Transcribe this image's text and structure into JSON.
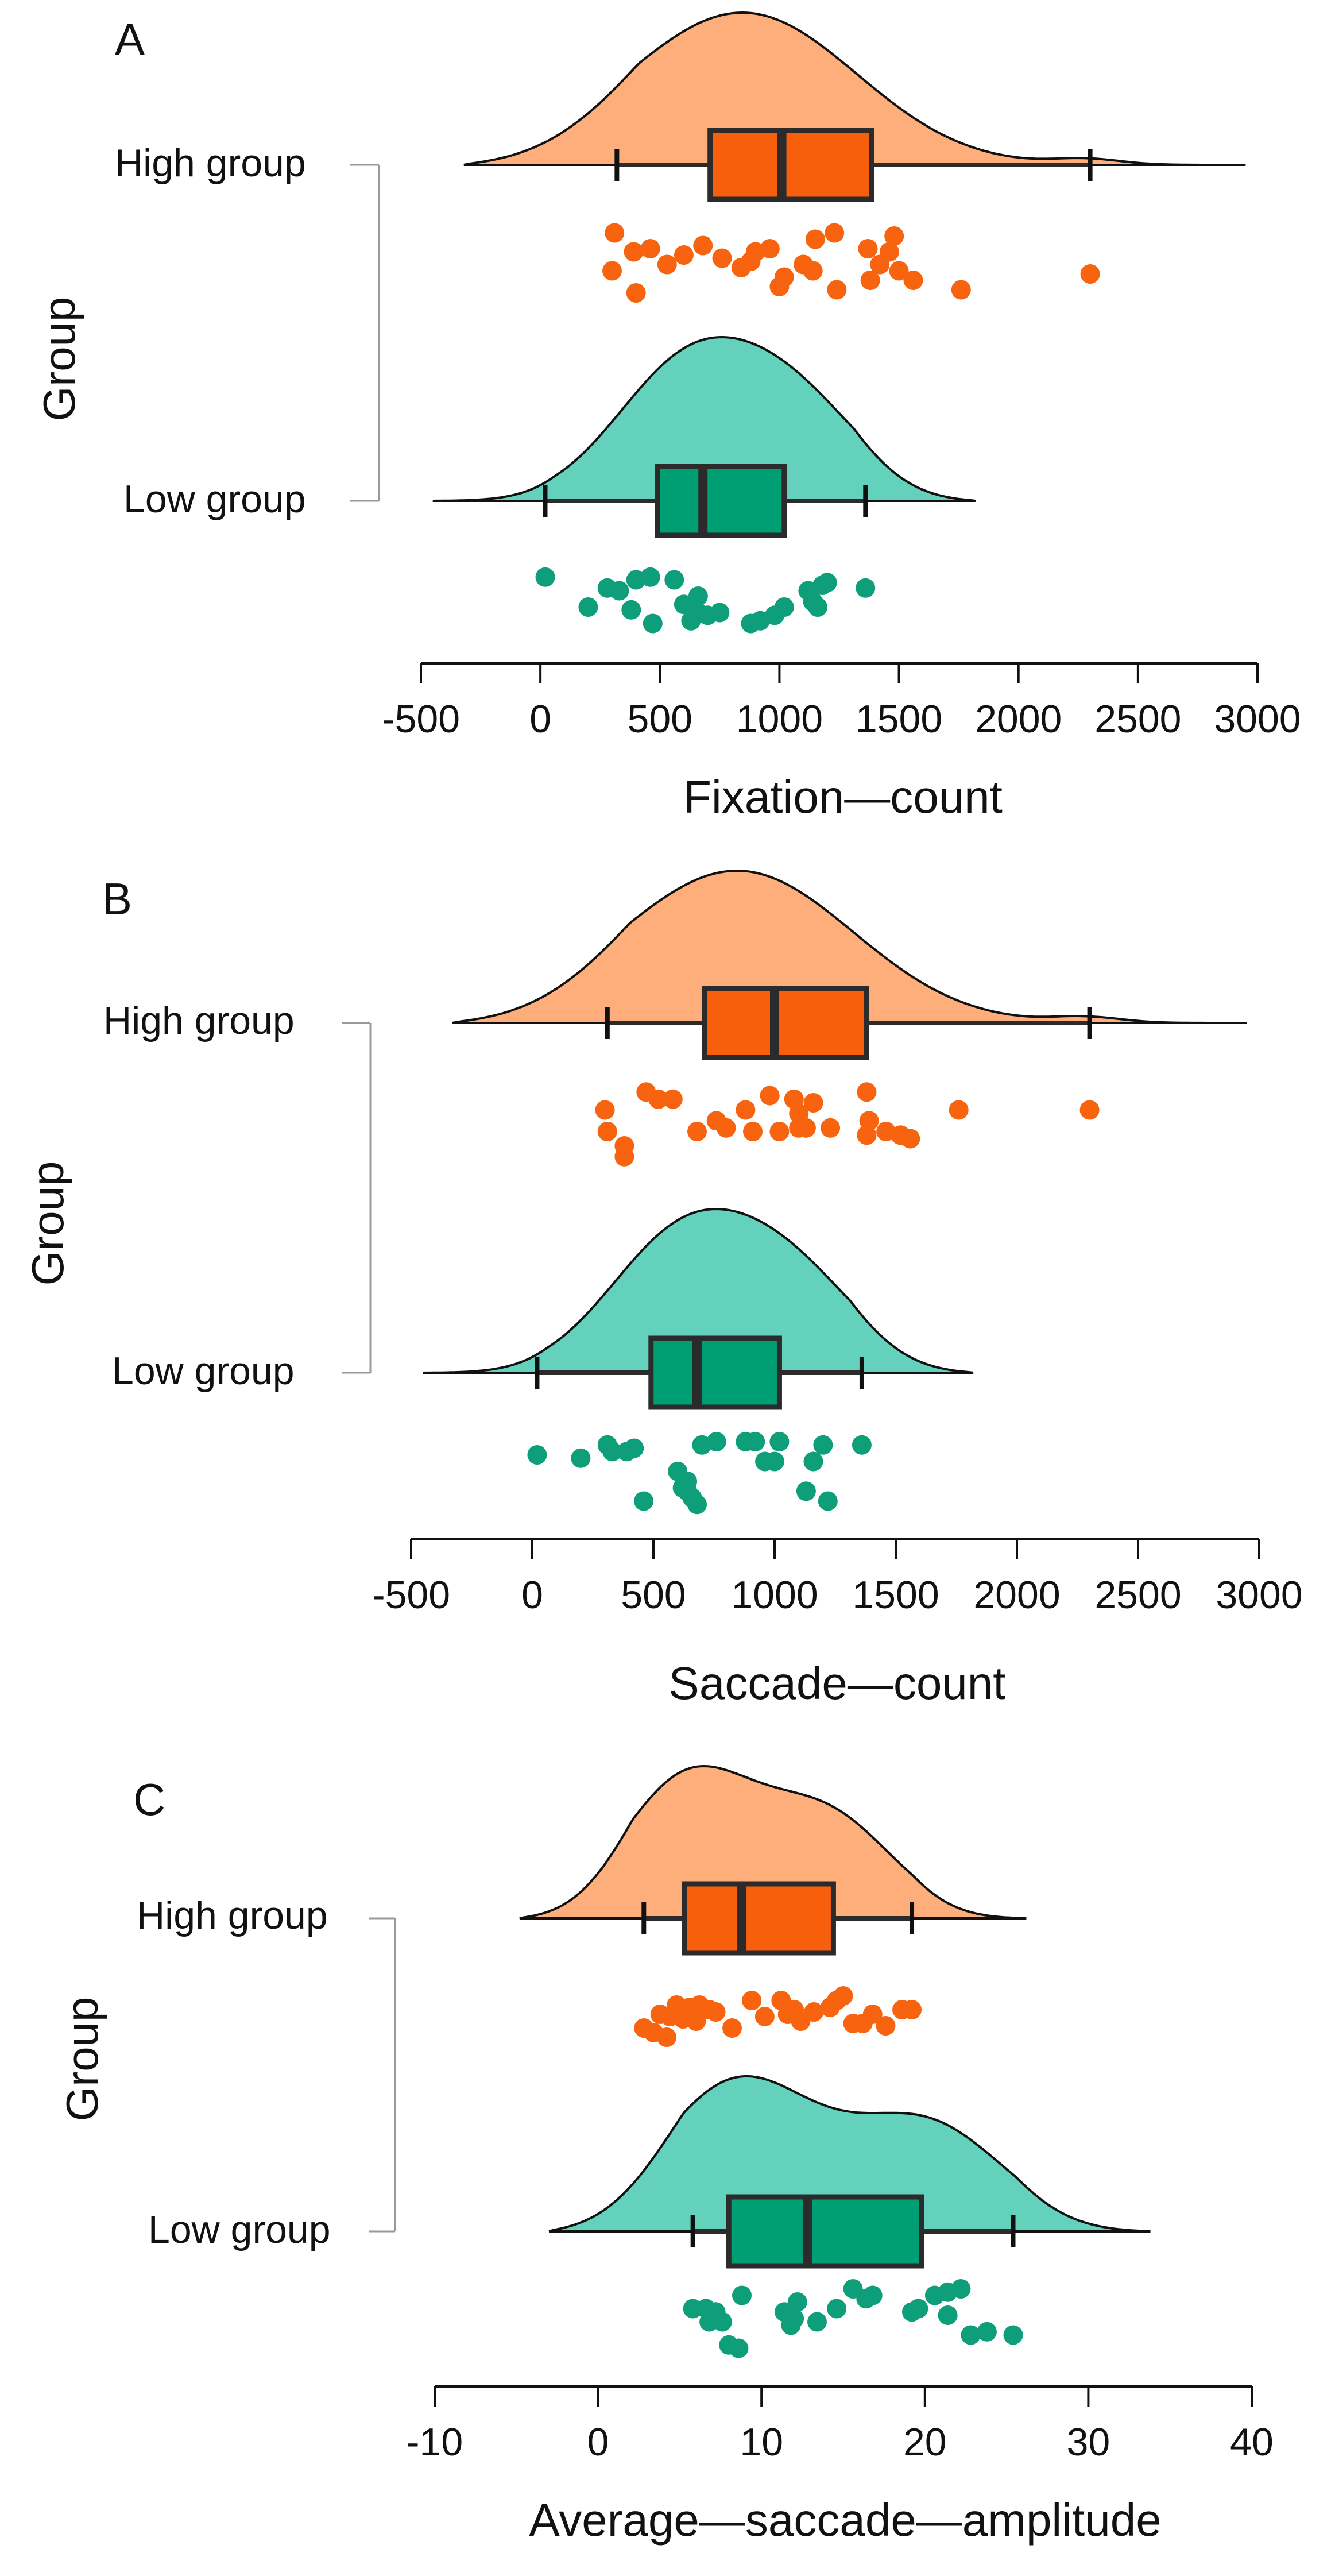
{
  "colors": {
    "high_density": "#fdae7b",
    "high_box": "#f85f0d",
    "high_point": "#f7630e",
    "low_density": "#63d1bc",
    "low_box": "#009e73",
    "low_point": "#0f9e7a",
    "stroke": "#2b2b2b"
  },
  "chart_data": [
    {
      "type": "raincloud",
      "panel_label": "A",
      "xlabel": "Fixation—count",
      "ylabel": "Group",
      "xlim": [
        -500,
        3000
      ],
      "xticks": [
        -500,
        0,
        500,
        1000,
        1500,
        2000,
        2500,
        3000
      ],
      "tick_labels": [
        "-500",
        "0",
        "500",
        "1000",
        "1500",
        "2000",
        "2500",
        "3000"
      ],
      "groups": [
        {
          "name": "High group",
          "box": {
            "whisker_low": 320,
            "q1": 710,
            "median": 1010,
            "q3": 1385,
            "whisker_high": 2300
          },
          "density_range": [
            -320,
            2950
          ],
          "density_peaks": [
            {
              "x": 1000,
              "h": 1.0
            },
            {
              "x": 600,
              "h": 0.7
            },
            {
              "x": 2300,
              "h": 0.06
            }
          ],
          "points": [
            [
              310,
              0.05
            ],
            [
              390,
              0.35
            ],
            [
              300,
              0.65
            ],
            [
              460,
              0.3
            ],
            [
              530,
              0.55
            ],
            [
              400,
              1.0
            ],
            [
              680,
              0.25
            ],
            [
              760,
              0.45
            ],
            [
              840,
              0.6
            ],
            [
              900,
              0.35
            ],
            [
              960,
              0.3
            ],
            [
              1000,
              0.9
            ],
            [
              1100,
              0.55
            ],
            [
              1140,
              0.65
            ],
            [
              1230,
              0.05
            ],
            [
              1240,
              0.95
            ],
            [
              1370,
              0.3
            ],
            [
              1380,
              0.8
            ],
            [
              1420,
              0.55
            ],
            [
              1460,
              0.35
            ],
            [
              1480,
              0.1
            ],
            [
              1500,
              0.65
            ],
            [
              1560,
              0.8
            ],
            [
              1760,
              0.95
            ],
            [
              2300,
              0.7
            ],
            [
              1150,
              0.15
            ],
            [
              880,
              0.5
            ],
            [
              1020,
              0.75
            ],
            [
              600,
              0.4
            ]
          ]
        },
        {
          "name": "Low group",
          "box": {
            "whisker_low": 20,
            "q1": 490,
            "median": 680,
            "q3": 1020,
            "whisker_high": 1360
          },
          "density_range": [
            -450,
            1820
          ],
          "density_peaks": [
            {
              "x": 590,
              "h": 1.0
            },
            {
              "x": 1050,
              "h": 0.8
            }
          ],
          "points": [
            [
              20,
              0.05
            ],
            [
              200,
              0.6
            ],
            [
              280,
              0.25
            ],
            [
              330,
              0.3
            ],
            [
              380,
              0.65
            ],
            [
              400,
              0.1
            ],
            [
              460,
              0.05
            ],
            [
              470,
              0.9
            ],
            [
              560,
              0.1
            ],
            [
              600,
              0.55
            ],
            [
              630,
              0.85
            ],
            [
              660,
              0.7
            ],
            [
              700,
              0.75
            ],
            [
              750,
              0.7
            ],
            [
              880,
              0.9
            ],
            [
              920,
              0.85
            ],
            [
              980,
              0.75
            ],
            [
              1020,
              0.6
            ],
            [
              1120,
              0.3
            ],
            [
              1160,
              0.6
            ],
            [
              1180,
              0.2
            ],
            [
              1200,
              0.15
            ],
            [
              1360,
              0.25
            ],
            [
              660,
              0.4
            ],
            [
              1140,
              0.5
            ]
          ]
        }
      ]
    },
    {
      "type": "raincloud",
      "panel_label": "B",
      "xlabel": "Saccade—count",
      "ylabel": "Group",
      "xlim": [
        -500,
        3000
      ],
      "xticks": [
        -500,
        0,
        500,
        1000,
        1500,
        2000,
        2500,
        3000
      ],
      "tick_labels": [
        "-500",
        "0",
        "500",
        "1000",
        "1500",
        "2000",
        "2500",
        "3000"
      ],
      "groups": [
        {
          "name": "High group",
          "box": {
            "whisker_low": 310,
            "q1": 710,
            "median": 1000,
            "q3": 1380,
            "whisker_high": 2300
          },
          "density_range": [
            -330,
            2950
          ],
          "density_peaks": [
            {
              "x": 1000,
              "h": 1.0
            },
            {
              "x": 600,
              "h": 0.7
            },
            {
              "x": 2300,
              "h": 0.06
            }
          ],
          "points": [
            [
              300,
              0.3
            ],
            [
              310,
              0.6
            ],
            [
              380,
              0.8
            ],
            [
              380,
              0.95
            ],
            [
              470,
              0.05
            ],
            [
              520,
              0.15
            ],
            [
              580,
              0.15
            ],
            [
              680,
              0.6
            ],
            [
              760,
              0.45
            ],
            [
              800,
              0.55
            ],
            [
              880,
              0.3
            ],
            [
              910,
              0.6
            ],
            [
              980,
              0.1
            ],
            [
              1020,
              0.6
            ],
            [
              1080,
              0.15
            ],
            [
              1100,
              0.55
            ],
            [
              1130,
              0.55
            ],
            [
              1160,
              0.2
            ],
            [
              1230,
              0.55
            ],
            [
              1380,
              0.05
            ],
            [
              1390,
              0.45
            ],
            [
              1380,
              0.65
            ],
            [
              1460,
              0.6
            ],
            [
              1520,
              0.65
            ],
            [
              1560,
              0.7
            ],
            [
              1760,
              0.3
            ],
            [
              2300,
              0.3
            ],
            [
              1100,
              0.35
            ]
          ]
        },
        {
          "name": "Low group",
          "box": {
            "whisker_low": 20,
            "q1": 490,
            "median": 680,
            "q3": 1020,
            "whisker_high": 1360
          },
          "density_range": [
            -450,
            1820
          ],
          "density_peaks": [
            {
              "x": 590,
              "h": 1.0
            },
            {
              "x": 1050,
              "h": 0.8
            }
          ],
          "points": [
            [
              20,
              0.2
            ],
            [
              200,
              0.25
            ],
            [
              310,
              0.05
            ],
            [
              330,
              0.15
            ],
            [
              390,
              0.15
            ],
            [
              420,
              0.1
            ],
            [
              460,
              0.9
            ],
            [
              600,
              0.45
            ],
            [
              620,
              0.7
            ],
            [
              640,
              0.6
            ],
            [
              660,
              0.85
            ],
            [
              700,
              0.05
            ],
            [
              760,
              0.0
            ],
            [
              880,
              0.0
            ],
            [
              920,
              0.0
            ],
            [
              960,
              0.3
            ],
            [
              1020,
              0.0
            ],
            [
              1000,
              0.3
            ],
            [
              1130,
              0.75
            ],
            [
              1160,
              0.3
            ],
            [
              1200,
              0.05
            ],
            [
              1220,
              0.9
            ],
            [
              1360,
              0.05
            ],
            [
              640,
              0.75
            ],
            [
              680,
              0.95
            ]
          ]
        }
      ]
    },
    {
      "type": "raincloud",
      "panel_label": "C",
      "xlabel": "Average—saccade—amplitude",
      "ylabel": "Group",
      "xlim": [
        -10,
        40
      ],
      "xticks": [
        -10,
        0,
        10,
        20,
        30,
        40
      ],
      "tick_labels": [
        "-10",
        "0",
        "10",
        "20",
        "30",
        "40"
      ],
      "groups": [
        {
          "name": "High group",
          "box": {
            "whisker_low": 2.8,
            "q1": 5.3,
            "median": 8.8,
            "q3": 14.4,
            "whisker_high": 19.2
          },
          "density_range": [
            -4.8,
            26.2
          ],
          "density_peaks": [
            {
              "x": 5.5,
              "h": 1.0
            },
            {
              "x": 14,
              "h": 0.72
            }
          ],
          "points": [
            [
              2.8,
              0.7
            ],
            [
              3.4,
              0.8
            ],
            [
              3.8,
              0.4
            ],
            [
              4.2,
              0.9
            ],
            [
              4.4,
              0.45
            ],
            [
              4.8,
              0.2
            ],
            [
              5.2,
              0.5
            ],
            [
              6.0,
              0.55
            ],
            [
              6.2,
              0.2
            ],
            [
              6.8,
              0.3
            ],
            [
              7.2,
              0.35
            ],
            [
              8.2,
              0.7
            ],
            [
              9.4,
              0.1
            ],
            [
              11.2,
              0.1
            ],
            [
              11.6,
              0.4
            ],
            [
              12.4,
              0.55
            ],
            [
              13.2,
              0.35
            ],
            [
              14.2,
              0.25
            ],
            [
              14.6,
              0.1
            ],
            [
              15.0,
              0.0
            ],
            [
              15.6,
              0.6
            ],
            [
              16.2,
              0.6
            ],
            [
              16.8,
              0.4
            ],
            [
              17.6,
              0.65
            ],
            [
              18.6,
              0.3
            ],
            [
              19.2,
              0.3
            ],
            [
              5.6,
              0.25
            ],
            [
              10.2,
              0.45
            ],
            [
              12.0,
              0.3
            ]
          ]
        },
        {
          "name": "Low group",
          "box": {
            "whisker_low": 5.8,
            "q1": 8.0,
            "median": 12.8,
            "q3": 19.8,
            "whisker_high": 25.4
          },
          "density_range": [
            -3.0,
            33.8
          ],
          "density_peaks": [
            {
              "x": 8.5,
              "h": 1.0
            },
            {
              "x": 20,
              "h": 0.72
            }
          ],
          "points": [
            [
              5.8,
              0.3
            ],
            [
              6.6,
              0.3
            ],
            [
              6.8,
              0.5
            ],
            [
              7.2,
              0.35
            ],
            [
              7.6,
              0.5
            ],
            [
              8.0,
              0.85
            ],
            [
              8.6,
              0.9
            ],
            [
              8.8,
              0.1
            ],
            [
              11.4,
              0.35
            ],
            [
              11.8,
              0.55
            ],
            [
              12.2,
              0.2
            ],
            [
              13.4,
              0.5
            ],
            [
              14.6,
              0.3
            ],
            [
              15.6,
              0.0
            ],
            [
              16.4,
              0.15
            ],
            [
              16.8,
              0.1
            ],
            [
              19.2,
              0.35
            ],
            [
              19.6,
              0.3
            ],
            [
              20.6,
              0.1
            ],
            [
              21.4,
              0.05
            ],
            [
              21.4,
              0.4
            ],
            [
              22.2,
              0.0
            ],
            [
              22.8,
              0.7
            ],
            [
              23.8,
              0.65
            ],
            [
              25.4,
              0.7
            ],
            [
              12.0,
              0.45
            ]
          ]
        }
      ]
    }
  ]
}
